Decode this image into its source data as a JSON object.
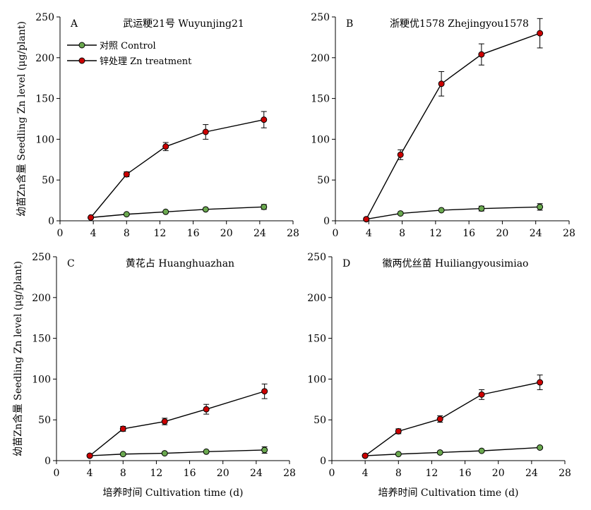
{
  "chart_data": [
    {
      "type": "line",
      "panel_letter": "A",
      "title": "武运粳21号 Wuyunjing21",
      "xlabel": "",
      "ylabel": "幼苗Zn含量 Seedling Zn level (μg/plant)",
      "xlim": [
        0,
        28
      ],
      "ylim": [
        0,
        250
      ],
      "xticks": [
        0,
        4,
        8,
        12,
        16,
        20,
        24,
        28
      ],
      "yticks": [
        0,
        50,
        100,
        150,
        200,
        250
      ],
      "legend": "top-left",
      "grid": false,
      "series": [
        {
          "name": "对照 Control",
          "color": "#6aa84f",
          "x": [
            3.7,
            8.0,
            12.7,
            17.5,
            24.5
          ],
          "y": [
            4,
            8,
            11,
            14,
            17
          ],
          "err": [
            1,
            1,
            1,
            2,
            3
          ]
        },
        {
          "name": "锌处理 Zn treatment",
          "color": "#cc0000",
          "x": [
            3.7,
            8.0,
            12.7,
            17.5,
            24.5
          ],
          "y": [
            4,
            57,
            91,
            109,
            124
          ],
          "err": [
            1,
            3,
            5,
            9,
            10
          ]
        }
      ]
    },
    {
      "type": "line",
      "panel_letter": "B",
      "title": "浙粳优1578 Zhejingyou1578",
      "xlabel": "",
      "ylabel": "",
      "xlim": [
        0,
        28
      ],
      "ylim": [
        0,
        250
      ],
      "xticks": [
        0,
        4,
        8,
        12,
        16,
        20,
        24,
        28
      ],
      "yticks": [
        0,
        50,
        100,
        150,
        200,
        250
      ],
      "grid": false,
      "series": [
        {
          "name": "对照 Control",
          "color": "#6aa84f",
          "x": [
            3.7,
            7.8,
            12.7,
            17.5,
            24.5
          ],
          "y": [
            2,
            9,
            13,
            15,
            17
          ],
          "err": [
            1,
            1,
            2,
            3,
            4
          ]
        },
        {
          "name": "锌处理 Zn treatment",
          "color": "#cc0000",
          "x": [
            3.7,
            7.8,
            12.7,
            17.5,
            24.5
          ],
          "y": [
            2,
            81,
            168,
            204,
            230
          ],
          "err": [
            1,
            6,
            15,
            13,
            18
          ]
        }
      ]
    },
    {
      "type": "line",
      "panel_letter": "C",
      "title": "黄花占 Huanghuazhan",
      "xlabel": "培养时间 Cultivation time (d)",
      "ylabel": "幼苗Zn含量 Seedling Zn level (μg/plant)",
      "xlim": [
        0,
        28
      ],
      "ylim": [
        0,
        250
      ],
      "xticks": [
        0,
        4,
        8,
        12,
        16,
        20,
        24,
        28
      ],
      "yticks": [
        0,
        50,
        100,
        150,
        200,
        250
      ],
      "grid": false,
      "series": [
        {
          "name": "对照 Control",
          "color": "#6aa84f",
          "x": [
            4,
            8,
            13,
            18,
            25
          ],
          "y": [
            6,
            8,
            9,
            11,
            13
          ],
          "err": [
            1,
            1,
            1,
            1,
            4
          ]
        },
        {
          "name": "锌处理 Zn treatment",
          "color": "#cc0000",
          "x": [
            4,
            8,
            13,
            18,
            25
          ],
          "y": [
            6,
            39,
            48,
            63,
            85
          ],
          "err": [
            1,
            3,
            4,
            6,
            9
          ]
        }
      ]
    },
    {
      "type": "line",
      "panel_letter": "D",
      "title": "徽两优丝苗 Huiliangyousimiao",
      "xlabel": "培养时间 Cultivation time (d)",
      "ylabel": "",
      "xlim": [
        0,
        28
      ],
      "ylim": [
        0,
        250
      ],
      "xticks": [
        0,
        4,
        8,
        12,
        16,
        20,
        24,
        28
      ],
      "yticks": [
        0,
        50,
        100,
        150,
        200,
        250
      ],
      "grid": false,
      "series": [
        {
          "name": "对照 Control",
          "color": "#6aa84f",
          "x": [
            4,
            8,
            13,
            18,
            25
          ],
          "y": [
            6,
            8,
            10,
            12,
            16
          ],
          "err": [
            1,
            1,
            1,
            1,
            2
          ]
        },
        {
          "name": "锌处理 Zn treatment",
          "color": "#cc0000",
          "x": [
            4,
            8,
            13,
            18,
            25
          ],
          "y": [
            6,
            36,
            51,
            81,
            96
          ],
          "err": [
            1,
            3,
            4,
            6,
            9
          ]
        }
      ]
    }
  ]
}
